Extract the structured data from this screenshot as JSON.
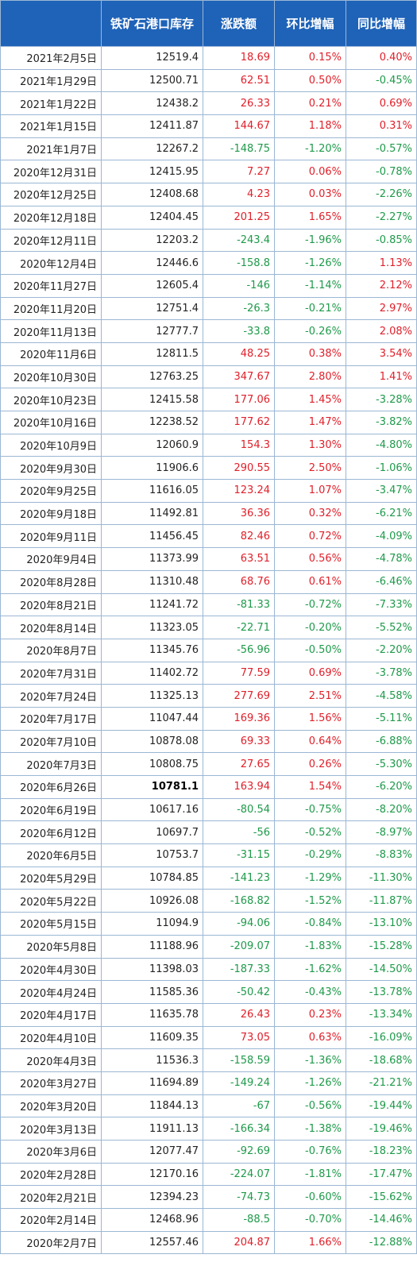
{
  "headers": [
    "",
    "铁矿石港口库存",
    "涨跌额",
    "环比增幅",
    "同比增幅"
  ],
  "colors": {
    "header_bg": "#1f63b8",
    "header_text": "#ffffff",
    "up": "#e0202a",
    "down": "#1e9a4a",
    "border": "#9bb7d4"
  },
  "bold_row_index": 32,
  "rows": [
    [
      "2021年2月5日",
      "12519.4",
      "18.69",
      "0.15%",
      "0.40%"
    ],
    [
      "2021年1月29日",
      "12500.71",
      "62.51",
      "0.50%",
      "-0.45%"
    ],
    [
      "2021年1月22日",
      "12438.2",
      "26.33",
      "0.21%",
      "0.69%"
    ],
    [
      "2021年1月15日",
      "12411.87",
      "144.67",
      "1.18%",
      "0.31%"
    ],
    [
      "2021年1月7日",
      "12267.2",
      "-148.75",
      "-1.20%",
      "-0.57%"
    ],
    [
      "2020年12月31日",
      "12415.95",
      "7.27",
      "0.06%",
      "-0.78%"
    ],
    [
      "2020年12月25日",
      "12408.68",
      "4.23",
      "0.03%",
      "-2.26%"
    ],
    [
      "2020年12月18日",
      "12404.45",
      "201.25",
      "1.65%",
      "-2.27%"
    ],
    [
      "2020年12月11日",
      "12203.2",
      "-243.4",
      "-1.96%",
      "-0.85%"
    ],
    [
      "2020年12月4日",
      "12446.6",
      "-158.8",
      "-1.26%",
      "1.13%"
    ],
    [
      "2020年11月27日",
      "12605.4",
      "-146",
      "-1.14%",
      "2.12%"
    ],
    [
      "2020年11月20日",
      "12751.4",
      "-26.3",
      "-0.21%",
      "2.97%"
    ],
    [
      "2020年11月13日",
      "12777.7",
      "-33.8",
      "-0.26%",
      "2.08%"
    ],
    [
      "2020年11月6日",
      "12811.5",
      "48.25",
      "0.38%",
      "3.54%"
    ],
    [
      "2020年10月30日",
      "12763.25",
      "347.67",
      "2.80%",
      "1.41%"
    ],
    [
      "2020年10月23日",
      "12415.58",
      "177.06",
      "1.45%",
      "-3.28%"
    ],
    [
      "2020年10月16日",
      "12238.52",
      "177.62",
      "1.47%",
      "-3.82%"
    ],
    [
      "2020年10月9日",
      "12060.9",
      "154.3",
      "1.30%",
      "-4.80%"
    ],
    [
      "2020年9月30日",
      "11906.6",
      "290.55",
      "2.50%",
      "-1.06%"
    ],
    [
      "2020年9月25日",
      "11616.05",
      "123.24",
      "1.07%",
      "-3.47%"
    ],
    [
      "2020年9月18日",
      "11492.81",
      "36.36",
      "0.32%",
      "-6.21%"
    ],
    [
      "2020年9月11日",
      "11456.45",
      "82.46",
      "0.72%",
      "-4.09%"
    ],
    [
      "2020年9月4日",
      "11373.99",
      "63.51",
      "0.56%",
      "-4.78%"
    ],
    [
      "2020年8月28日",
      "11310.48",
      "68.76",
      "0.61%",
      "-6.46%"
    ],
    [
      "2020年8月21日",
      "11241.72",
      "-81.33",
      "-0.72%",
      "-7.33%"
    ],
    [
      "2020年8月14日",
      "11323.05",
      "-22.71",
      "-0.20%",
      "-5.52%"
    ],
    [
      "2020年8月7日",
      "11345.76",
      "-56.96",
      "-0.50%",
      "-2.20%"
    ],
    [
      "2020年7月31日",
      "11402.72",
      "77.59",
      "0.69%",
      "-3.78%"
    ],
    [
      "2020年7月24日",
      "11325.13",
      "277.69",
      "2.51%",
      "-4.58%"
    ],
    [
      "2020年7月17日",
      "11047.44",
      "169.36",
      "1.56%",
      "-5.11%"
    ],
    [
      "2020年7月10日",
      "10878.08",
      "69.33",
      "0.64%",
      "-6.88%"
    ],
    [
      "2020年7月3日",
      "10808.75",
      "27.65",
      "0.26%",
      "-5.30%"
    ],
    [
      "2020年6月26日",
      "10781.1",
      "163.94",
      "1.54%",
      "-6.20%"
    ],
    [
      "2020年6月19日",
      "10617.16",
      "-80.54",
      "-0.75%",
      "-8.20%"
    ],
    [
      "2020年6月12日",
      "10697.7",
      "-56",
      "-0.52%",
      "-8.97%"
    ],
    [
      "2020年6月5日",
      "10753.7",
      "-31.15",
      "-0.29%",
      "-8.83%"
    ],
    [
      "2020年5月29日",
      "10784.85",
      "-141.23",
      "-1.29%",
      "-11.30%"
    ],
    [
      "2020年5月22日",
      "10926.08",
      "-168.82",
      "-1.52%",
      "-11.87%"
    ],
    [
      "2020年5月15日",
      "11094.9",
      "-94.06",
      "-0.84%",
      "-13.10%"
    ],
    [
      "2020年5月8日",
      "11188.96",
      "-209.07",
      "-1.83%",
      "-15.28%"
    ],
    [
      "2020年4月30日",
      "11398.03",
      "-187.33",
      "-1.62%",
      "-14.50%"
    ],
    [
      "2020年4月24日",
      "11585.36",
      "-50.42",
      "-0.43%",
      "-13.78%"
    ],
    [
      "2020年4月17日",
      "11635.78",
      "26.43",
      "0.23%",
      "-13.34%"
    ],
    [
      "2020年4月10日",
      "11609.35",
      "73.05",
      "0.63%",
      "-16.09%"
    ],
    [
      "2020年4月3日",
      "11536.3",
      "-158.59",
      "-1.36%",
      "-18.68%"
    ],
    [
      "2020年3月27日",
      "11694.89",
      "-149.24",
      "-1.26%",
      "-21.21%"
    ],
    [
      "2020年3月20日",
      "11844.13",
      "-67",
      "-0.56%",
      "-19.44%"
    ],
    [
      "2020年3月13日",
      "11911.13",
      "-166.34",
      "-1.38%",
      "-19.46%"
    ],
    [
      "2020年3月6日",
      "12077.47",
      "-92.69",
      "-0.76%",
      "-18.23%"
    ],
    [
      "2020年2月28日",
      "12170.16",
      "-224.07",
      "-1.81%",
      "-17.47%"
    ],
    [
      "2020年2月21日",
      "12394.23",
      "-74.73",
      "-0.60%",
      "-15.62%"
    ],
    [
      "2020年2月14日",
      "12468.96",
      "-88.5",
      "-0.70%",
      "-14.46%"
    ],
    [
      "2020年2月7日",
      "12557.46",
      "204.87",
      "1.66%",
      "-12.88%"
    ]
  ]
}
